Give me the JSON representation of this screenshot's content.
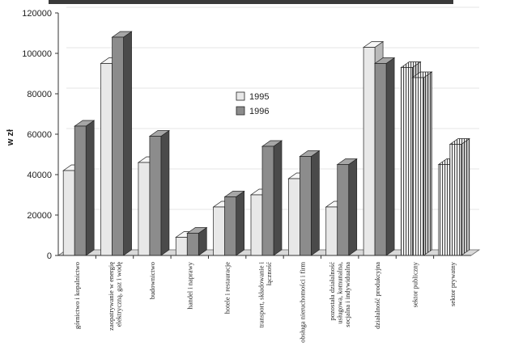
{
  "chart_data": {
    "type": "bar",
    "title": "",
    "xlabel": "",
    "ylabel": "w zł",
    "ylim": [
      0,
      120000
    ],
    "yticks": [
      "0",
      "20000",
      "40000",
      "60000",
      "80000",
      "100000",
      "120000"
    ],
    "ytick_values": [
      0,
      20000,
      40000,
      60000,
      80000,
      100000,
      120000
    ],
    "categories": [
      [
        "górnictwo i kopalnictwo"
      ],
      [
        "zaopatrywanie w energię",
        "elektryczną, gaz i wodę"
      ],
      [
        "budownictwo"
      ],
      [
        "handel i naprawy"
      ],
      [
        "hotele i restauracje"
      ],
      [
        "transport, składowanie i",
        "łączność"
      ],
      [
        "obsługa nieruchomości i firm"
      ],
      [
        "pozostała działalność",
        "usługowa, komunalna,",
        "socjalna i indywidualna"
      ],
      [
        "działalność produkcyjna"
      ],
      [
        "sektor publiczny"
      ],
      [
        "sektor prywatny"
      ]
    ],
    "series": [
      {
        "name": "1995",
        "values": [
          42000,
          95000,
          46000,
          9000,
          24000,
          30000,
          38000,
          24000,
          103000,
          93000,
          45000
        ]
      },
      {
        "name": "1996",
        "values": [
          64000,
          108000,
          59000,
          11000,
          29000,
          54000,
          49000,
          45000,
          95000,
          88000,
          55000
        ]
      }
    ],
    "legend": {
      "position": "center"
    },
    "colors": {
      "1995": "#e8e8e8",
      "1996": "#8c8c8c",
      "1995_side": "#b9b9b9",
      "1996_side": "#4a4a4a",
      "grid": "#e6e6e6",
      "striped": "#555555"
    }
  }
}
